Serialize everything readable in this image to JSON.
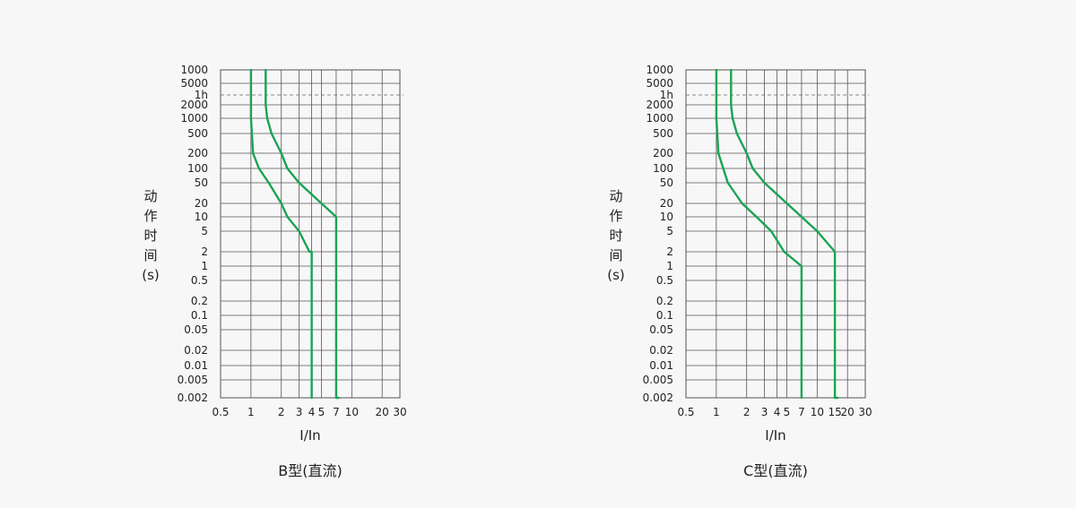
{
  "chart_data": [
    {
      "type": "line",
      "title": "B型(直流)",
      "xlabel": "I/In",
      "ylabel": [
        "动",
        "作",
        "时",
        "间",
        "(s)"
      ],
      "x_scale": "log",
      "xlim": [
        0.5,
        30
      ],
      "x_ticks": [
        0.5,
        1,
        2,
        3,
        4,
        5,
        7,
        10,
        20,
        30
      ],
      "x_tick_labels": [
        "0.5",
        "1",
        "2",
        "3",
        "4",
        "5",
        "7",
        "10",
        "20",
        "30"
      ],
      "y_tick_labels": [
        "1000",
        "5000",
        "1h",
        "2000",
        "1000",
        "500",
        "200",
        "100",
        "50",
        "20",
        "10",
        "5",
        "2",
        "1",
        "0.5",
        "0.2",
        "0.1",
        "0.05",
        "0.02",
        "0.01",
        "0.005",
        "0.002"
      ],
      "y_reference_line": "1h",
      "grid": true,
      "colors": {
        "curve": "#1aa353",
        "grid": "#555555",
        "reference": "#888888"
      },
      "series": [
        {
          "points": [
            [
              1,
              "1000"
            ],
            [
              1,
              "5000"
            ],
            [
              1,
              "1h"
            ],
            [
              1,
              "2000"
            ],
            [
              1,
              "1000"
            ],
            [
              1.05,
              "200"
            ],
            [
              1.2,
              "100"
            ],
            [
              1.5,
              "50"
            ],
            [
              2,
              "20"
            ],
            [
              2.3,
              "10"
            ],
            [
              3,
              "5"
            ],
            [
              3.8,
              "2"
            ],
            [
              4,
              "2"
            ],
            [
              4,
              "0.002"
            ]
          ]
        },
        {
          "points": [
            [
              1.4,
              "1000"
            ],
            [
              1.4,
              "5000"
            ],
            [
              1.4,
              "1h"
            ],
            [
              1.4,
              "2000"
            ],
            [
              1.45,
              "1000"
            ],
            [
              1.6,
              "500"
            ],
            [
              2,
              "200"
            ],
            [
              2.3,
              "100"
            ],
            [
              3,
              "50"
            ],
            [
              5,
              "20"
            ],
            [
              7,
              "10"
            ],
            [
              7,
              "0.002"
            ],
            [
              7.4,
              "0.002"
            ]
          ]
        }
      ]
    },
    {
      "type": "line",
      "title": "C型(直流)",
      "xlabel": "I/In",
      "ylabel": [
        "动",
        "作",
        "时",
        "间",
        "(s)"
      ],
      "x_scale": "log",
      "xlim": [
        0.5,
        30
      ],
      "x_ticks": [
        0.5,
        1,
        2,
        3,
        4,
        5,
        7,
        10,
        15,
        20,
        30
      ],
      "x_tick_labels": [
        "0.5",
        "1",
        "2",
        "3",
        "4",
        "5",
        "7",
        "10",
        "15",
        "20",
        "30"
      ],
      "y_tick_labels": [
        "1000",
        "5000",
        "1h",
        "2000",
        "1000",
        "500",
        "200",
        "100",
        "50",
        "20",
        "10",
        "5",
        "2",
        "1",
        "0.5",
        "0.2",
        "0.1",
        "0.05",
        "0.02",
        "0.01",
        "0.005",
        "0.002"
      ],
      "y_reference_line": "1h",
      "grid": true,
      "colors": {
        "curve": "#1aa353",
        "grid": "#555555",
        "reference": "#888888"
      },
      "series": [
        {
          "points": [
            [
              1,
              "1000"
            ],
            [
              1,
              "5000"
            ],
            [
              1,
              "1h"
            ],
            [
              1,
              "2000"
            ],
            [
              1,
              "1000"
            ],
            [
              1.05,
              "200"
            ],
            [
              1.3,
              "50"
            ],
            [
              1.8,
              "20"
            ],
            [
              2.5,
              "10"
            ],
            [
              3.5,
              "5"
            ],
            [
              4.7,
              "2"
            ],
            [
              7,
              "1"
            ],
            [
              7,
              "0.002"
            ]
          ]
        },
        {
          "points": [
            [
              1.4,
              "1000"
            ],
            [
              1.4,
              "5000"
            ],
            [
              1.4,
              "1h"
            ],
            [
              1.4,
              "2000"
            ],
            [
              1.45,
              "1000"
            ],
            [
              1.6,
              "500"
            ],
            [
              2,
              "200"
            ],
            [
              2.3,
              "100"
            ],
            [
              3,
              "50"
            ],
            [
              5,
              "20"
            ],
            [
              7,
              "10"
            ],
            [
              10,
              "5"
            ],
            [
              15,
              "2"
            ],
            [
              15,
              "0.002"
            ],
            [
              16,
              "0.002"
            ]
          ]
        }
      ]
    }
  ]
}
